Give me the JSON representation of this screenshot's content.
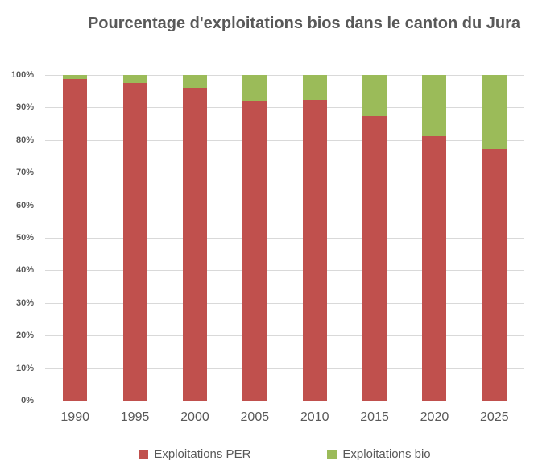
{
  "title": "Pourcentage d'exploitations bios dans le canton du Jura",
  "colors": {
    "per_red": "#C0504D",
    "bio_green": "#9BBB59",
    "text_gray": "#595959",
    "gridline": "#D9D9D9"
  },
  "chart_data": {
    "type": "bar",
    "stacked": true,
    "title": "Pourcentage d'exploitations bios dans le canton du Jura",
    "categories": [
      "1990",
      "1995",
      "2000",
      "2005",
      "2010",
      "2015",
      "2020",
      "2025"
    ],
    "series": [
      {
        "name": "Exploitations PER",
        "color": "#C0504D",
        "values": [
          98.7,
          97.5,
          96.0,
          92.2,
          92.4,
          87.4,
          81.2,
          77.2
        ]
      },
      {
        "name": "Exploitations bio",
        "color": "#9BBB59",
        "values": [
          1.3,
          2.5,
          4.0,
          7.8,
          7.6,
          12.6,
          18.8,
          22.8
        ]
      }
    ],
    "xlabel": "",
    "ylabel": "",
    "ylim": [
      0,
      100
    ],
    "yticks": [
      "0%",
      "10%",
      "20%",
      "30%",
      "40%",
      "50%",
      "60%",
      "70%",
      "80%",
      "90%",
      "100%"
    ],
    "grid": true,
    "legend_position": "bottom"
  }
}
